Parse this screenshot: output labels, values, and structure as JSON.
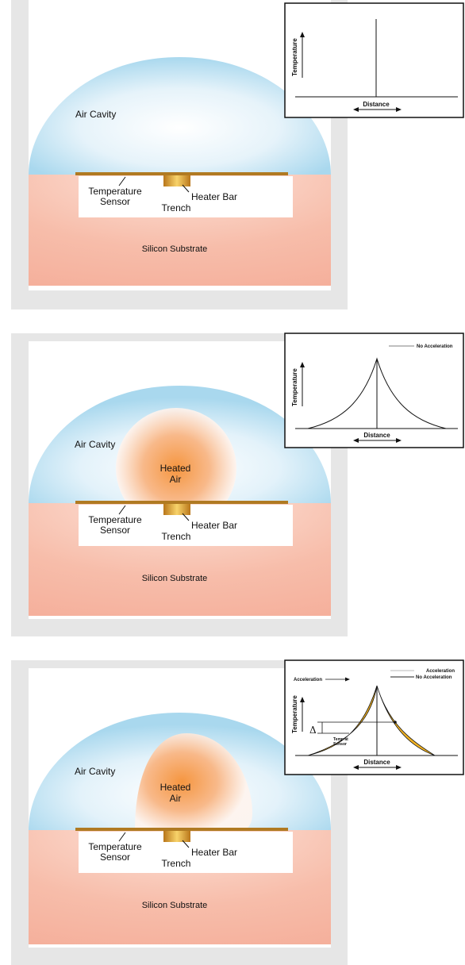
{
  "panels": [
    {
      "state": "idle",
      "labels": {
        "air_cavity": "Air Cavity",
        "heated_air_line1": "",
        "heated_air_line2": "",
        "temp_sensor_line1": "Temperature",
        "temp_sensor_line2": "Sensor",
        "heater_bar": "Heater Bar",
        "trench": "Trench",
        "substrate": "Silicon Substrate"
      },
      "graph": {
        "ylabel": "Temperature",
        "xlabel": "Distance",
        "legend": []
      }
    },
    {
      "state": "no-acceleration",
      "labels": {
        "air_cavity": "Air Cavity",
        "heated_air_line1": "Heated",
        "heated_air_line2": "Air",
        "temp_sensor_line1": "Temperature",
        "temp_sensor_line2": "Sensor",
        "heater_bar": "Heater Bar",
        "trench": "Trench",
        "substrate": "Silicon Substrate"
      },
      "graph": {
        "ylabel": "Temperature",
        "xlabel": "Distance",
        "legend": [
          "No Acceleration"
        ]
      }
    },
    {
      "state": "acceleration",
      "labels": {
        "air_cavity": "Air Cavity",
        "heated_air_line1": "Heated",
        "heated_air_line2": "Air",
        "temp_sensor_line1": "Temperature",
        "temp_sensor_line2": "Sensor",
        "heater_bar": "Heater Bar",
        "trench": "Trench",
        "substrate": "Silicon Substrate"
      },
      "graph": {
        "ylabel": "Temperature",
        "xlabel": "Distance",
        "legend": [
          "Acceleration",
          "No Acceleration"
        ],
        "accel_arrow_label": "Acceleration",
        "delta": "Δ",
        "temp_at_sensor_line1": "Temp at",
        "temp_at_sensor_line2": "Sensor"
      }
    }
  ],
  "colors": {
    "frame": "#e6e6e6",
    "air_cavity": "#a9d8ee",
    "substrate": "#f5b3a1",
    "trench": "#fdfdfd",
    "heater": "#e3a21c",
    "sensor_bar": "#b07a22",
    "heated_air": "#f7a55a",
    "curve_fill": "#f2b322"
  }
}
